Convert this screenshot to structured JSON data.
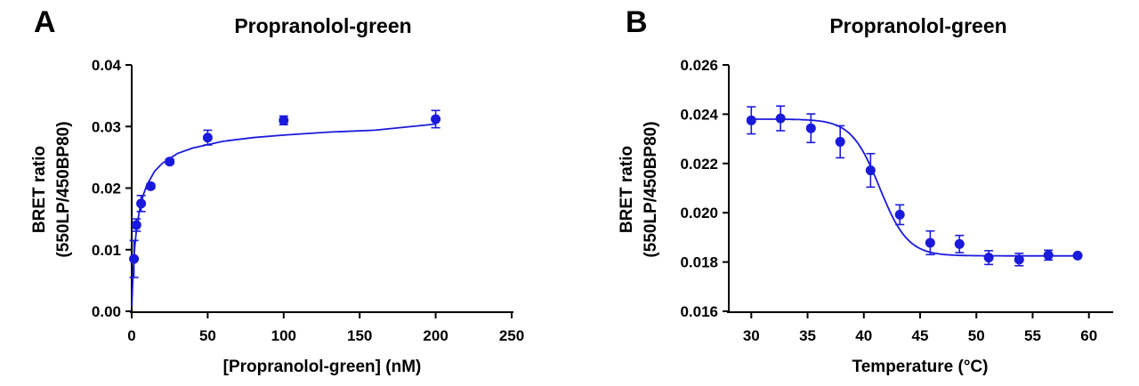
{
  "colors": {
    "series": "#1a1adc",
    "axis": "#000000"
  },
  "chart_data": [
    {
      "type": "scatter",
      "panel": "A",
      "title": "Propranolol-green",
      "xlabel": "[Propranolol-green] (nM)",
      "ylabel": "BRET ratio",
      "ylabel2": "(550LP/450BP80)",
      "xlim": [
        0,
        250
      ],
      "ylim": [
        0,
        0.04
      ],
      "xticks": [
        0,
        50,
        100,
        150,
        200,
        250
      ],
      "yticks": [
        0.0,
        0.01,
        0.02,
        0.03,
        0.04
      ],
      "xtick_labels": [
        "0",
        "50",
        "100",
        "150",
        "200",
        "250"
      ],
      "ytick_labels": [
        "0.00",
        "0.01",
        "0.02",
        "0.03",
        "0.04"
      ],
      "fit": "saturation binding curve",
      "series": [
        {
          "x": [
            1.5,
            3.1,
            6.2,
            12.5,
            25,
            50,
            100,
            200
          ],
          "y": [
            0.0085,
            0.014,
            0.0175,
            0.0203,
            0.0243,
            0.0282,
            0.031,
            0.0312
          ],
          "yerr": [
            0.003,
            0.001,
            0.0013,
            0.0004,
            0.0004,
            0.0012,
            0.0007,
            0.0014
          ]
        }
      ],
      "curve": {
        "x": [
          0.1,
          0.5,
          1,
          2,
          3,
          5,
          7.5,
          10,
          15,
          20,
          30,
          40,
          60,
          80,
          100,
          130,
          160,
          200
        ],
        "y": [
          0.0009,
          0.0038,
          0.0066,
          0.0104,
          0.0129,
          0.0162,
          0.0188,
          0.0205,
          0.0227,
          0.024,
          0.0256,
          0.0265,
          0.0276,
          0.0282,
          0.0286,
          0.0291,
          0.0294,
          0.0304
        ]
      },
      "grid": false
    },
    {
      "type": "scatter",
      "panel": "B",
      "title": "Propranolol-green",
      "xlabel": "Temperature (°C)",
      "ylabel": "BRET ratio",
      "ylabel2": "(550LP/450BP80)",
      "xlim": [
        28,
        62
      ],
      "ylim": [
        0.016,
        0.026
      ],
      "xticks": [
        30,
        35,
        40,
        45,
        50,
        55,
        60
      ],
      "yticks": [
        0.016,
        0.018,
        0.02,
        0.022,
        0.024,
        0.026
      ],
      "xtick_labels": [
        "30",
        "35",
        "40",
        "45",
        "50",
        "55",
        "60"
      ],
      "ytick_labels": [
        "0.016",
        "0.018",
        "0.020",
        "0.022",
        "0.024",
        "0.026"
      ],
      "fit": "sigmoidal melting curve",
      "series": [
        {
          "x": [
            30.0,
            32.6,
            35.3,
            37.9,
            40.6,
            43.2,
            45.9,
            48.5,
            51.1,
            53.8,
            56.4,
            59.0
          ],
          "y": [
            0.02375,
            0.02383,
            0.02343,
            0.02288,
            0.02172,
            0.01992,
            0.01878,
            0.01873,
            0.01818,
            0.0181,
            0.01828,
            0.01826
          ],
          "yerr": [
            0.00055,
            0.0005,
            0.00058,
            0.00065,
            0.00068,
            0.0004,
            0.00048,
            0.00035,
            0.00028,
            0.00025,
            0.0002,
            5e-05
          ]
        }
      ],
      "curve": {
        "top": 0.0238,
        "bottom": 0.01825,
        "tm": 41.4,
        "slope": 1.25
      },
      "grid": false
    }
  ]
}
